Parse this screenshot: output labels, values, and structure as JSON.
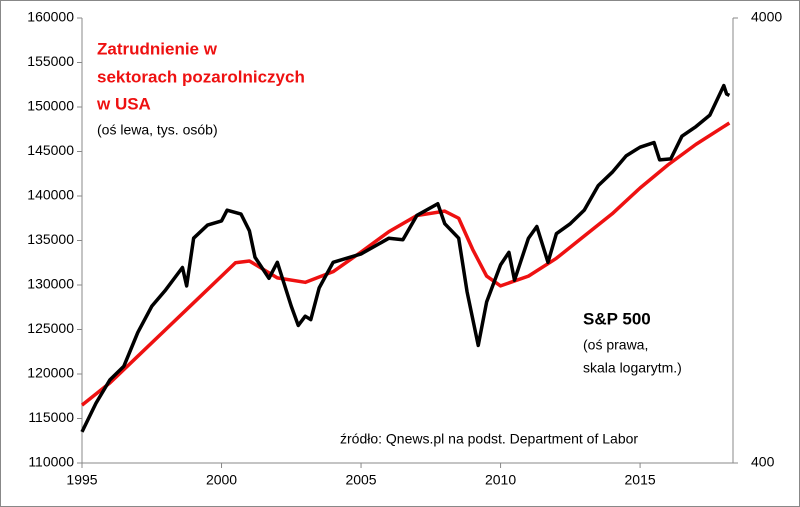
{
  "chart_data": {
    "type": "line",
    "annotations": [
      "Zatrudnienie w",
      "sektorach pozarolniczych",
      "w USA",
      "(oś lewa, tys. osób)",
      "S&P 500",
      "(oś prawa,",
      "skala logarytm.)",
      "źródło: Qnews.pl na podst. Department of Labor"
    ],
    "xlim": [
      1995,
      2018.33
    ],
    "xticks": [
      1995,
      2000,
      2005,
      2010,
      2015
    ],
    "ylim": [
      110000,
      160000
    ],
    "yticks": [
      110000,
      115000,
      120000,
      125000,
      130000,
      135000,
      140000,
      145000,
      150000,
      155000,
      160000
    ],
    "y2lim": [
      400,
      4000
    ],
    "y2ticks": [
      400,
      4000
    ],
    "y2scale": "log",
    "grid": false,
    "series": [
      {
        "color": "#ee1111",
        "x": [
          1995,
          1996,
          1997,
          1998,
          1999,
          2000,
          2000.5,
          2001,
          2002,
          2003,
          2004,
          2005,
          2006,
          2007,
          2008,
          2008.5,
          2009,
          2009.5,
          2010,
          2011,
          2012,
          2013,
          2014,
          2015,
          2016,
          2017,
          2018,
          2018.2
        ],
        "values": [
          116500,
          119000,
          122000,
          125000,
          128000,
          131000,
          132500,
          132700,
          130800,
          130300,
          131500,
          133700,
          136000,
          137800,
          138300,
          137500,
          134000,
          131000,
          129900,
          131000,
          133000,
          135500,
          138000,
          140900,
          143500,
          145800,
          147800,
          148200
        ]
      },
      {
        "color": "#000000",
        "axis": "y2",
        "x": [
          1995,
          1995.5,
          1996,
          1996.5,
          1997,
          1997.5,
          1998,
          1998.6,
          1998.75,
          1999,
          1999.5,
          2000,
          2000.2,
          2000.7,
          2001,
          2001.2,
          2001.7,
          2002,
          2002.5,
          2002.75,
          2003,
          2003.2,
          2003.5,
          2004,
          2005,
          2006,
          2006.5,
          2007,
          2007.75,
          2008,
          2008.5,
          2008.8,
          2009.2,
          2009.5,
          2010,
          2010.3,
          2010.5,
          2011,
          2011.3,
          2011.7,
          2012,
          2012.5,
          2013,
          2013.5,
          2014,
          2014.5,
          2015,
          2015.5,
          2015.7,
          2016.1,
          2016.5,
          2017,
          2017.5,
          2018,
          2018.1,
          2018.2
        ],
        "values": [
          470,
          545,
          615,
          660,
          786,
          900,
          980,
          1100,
          1000,
          1280,
          1370,
          1400,
          1480,
          1450,
          1330,
          1160,
          1040,
          1130,
          900,
          815,
          855,
          840,
          990,
          1130,
          1180,
          1280,
          1270,
          1440,
          1530,
          1380,
          1280,
          970,
          735,
          920,
          1115,
          1190,
          1030,
          1280,
          1360,
          1130,
          1310,
          1380,
          1480,
          1680,
          1800,
          1960,
          2050,
          2100,
          1920,
          1930,
          2170,
          2280,
          2420,
          2820,
          2700,
          2680
        ]
      }
    ]
  }
}
